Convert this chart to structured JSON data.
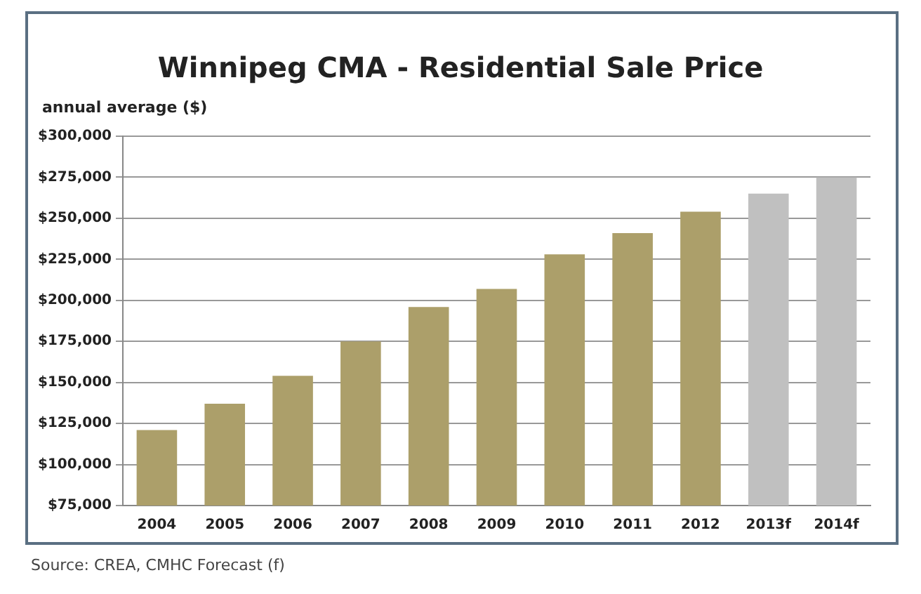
{
  "chart_data": {
    "type": "bar",
    "title": "Winnipeg CMA - Residential Sale Price",
    "ylabel": "annual average ($)",
    "categories": [
      "2004",
      "2005",
      "2006",
      "2007",
      "2008",
      "2009",
      "2010",
      "2011",
      "2012",
      "2013f",
      "2014f"
    ],
    "values": [
      121000,
      137000,
      154000,
      175000,
      196000,
      207000,
      228000,
      241000,
      254000,
      265000,
      275000
    ],
    "colors": [
      "#ac9f6a",
      "#ac9f6a",
      "#ac9f6a",
      "#ac9f6a",
      "#ac9f6a",
      "#ac9f6a",
      "#ac9f6a",
      "#ac9f6a",
      "#ac9f6a",
      "#c0c0c0",
      "#c0c0c0"
    ],
    "ylim": [
      75000,
      300000
    ],
    "yticks": [
      {
        "value": 75000,
        "label": "$75,000"
      },
      {
        "value": 100000,
        "label": "$100,000"
      },
      {
        "value": 125000,
        "label": "$125,000"
      },
      {
        "value": 150000,
        "label": "$150,000"
      },
      {
        "value": 175000,
        "label": "$175,000"
      },
      {
        "value": 200000,
        "label": "$200,000"
      },
      {
        "value": 225000,
        "label": "$225,000"
      },
      {
        "value": 250000,
        "label": "$250,000"
      },
      {
        "value": 275000,
        "label": "$275,000"
      },
      {
        "value": 300000,
        "label": "$300,000"
      }
    ],
    "grid": "y",
    "annotations": [
      "Source: CREA, CMHC Forecast (f)"
    ]
  }
}
